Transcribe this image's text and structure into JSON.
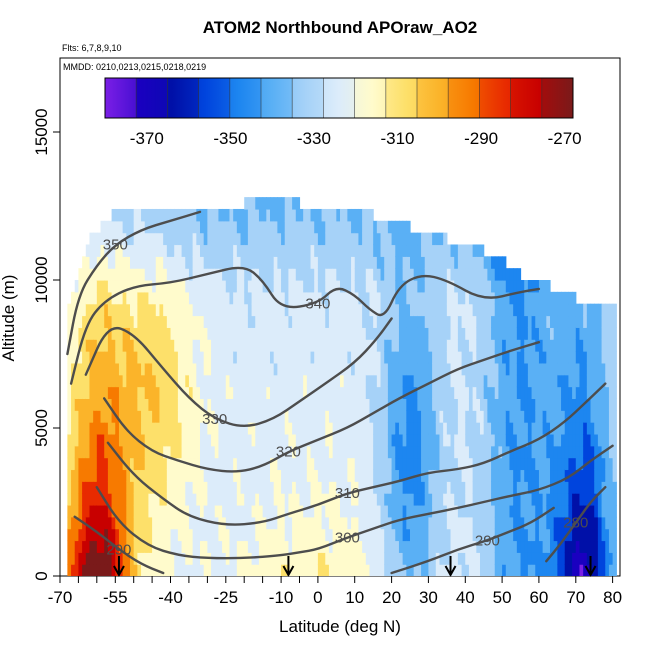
{
  "chart_data": {
    "type": "heatmap",
    "title": "ATOM2 Northbound APOraw_AO2",
    "subtitle_flights": "Flts: 6,7,8,9,10",
    "subtitle_dates": "MMDD: 0210,0213,0215,0218,0219",
    "xlabel": "Latitude (deg N)",
    "ylabel": "Altitude (m)",
    "xlim": [
      -70,
      82
    ],
    "ylim": [
      0,
      17500
    ],
    "x_ticks": [
      -70,
      -55,
      -40,
      -25,
      -10,
      0,
      10,
      20,
      30,
      40,
      50,
      60,
      70,
      80
    ],
    "x_tick_labels": [
      "-70",
      "-55",
      "-40",
      "-25",
      "-10",
      "0",
      "10",
      "20",
      "30",
      "40",
      "50",
      "60",
      "70",
      "80"
    ],
    "x_minor_ticks": [
      -65,
      -60,
      -50,
      -45,
      -35,
      -30,
      -20,
      -15,
      -5
    ],
    "y_ticks": [
      0,
      5000,
      10000,
      15000
    ],
    "y_tick_labels": [
      "0",
      "5000",
      "10000",
      "15000"
    ],
    "colorbar": {
      "range": [
        -380,
        -268
      ],
      "ticks": [
        -370,
        -350,
        -330,
        -310,
        -290,
        -270
      ],
      "tick_labels": [
        "-370",
        "-350",
        "-330",
        "-310",
        "-290",
        "-270"
      ],
      "colors": [
        "#7b1fe6",
        "#1a00c0",
        "#0010a8",
        "#0044dd",
        "#1d86f0",
        "#5ab0f5",
        "#a6d2f8",
        "#dcecfa",
        "#fffbcc",
        "#fde06a",
        "#fbb42a",
        "#f77a00",
        "#e82a00",
        "#c80000",
        "#7a1a1a"
      ]
    },
    "heatmap_profile": {
      "latitudes": [
        -67,
        -63,
        -59,
        -55,
        -50,
        -45,
        -40,
        -35,
        -30,
        -25,
        -20,
        -15,
        -10,
        -5,
        0,
        5,
        10,
        15,
        20,
        25,
        30,
        35,
        40,
        45,
        50,
        55,
        60,
        65,
        70,
        75,
        80
      ],
      "tops_m": [
        9000,
        11000,
        11600,
        12200,
        12400,
        12400,
        12400,
        12400,
        12400,
        12400,
        12400,
        12600,
        12800,
        12400,
        12000,
        12400,
        12200,
        12000,
        11800,
        11600,
        11400,
        11200,
        11000,
        10800,
        10500,
        10000,
        9800,
        9500,
        9200,
        9000,
        8900
      ]
    },
    "contours": [
      {
        "label": "350",
        "points": [
          [
            -68,
            7500
          ],
          [
            -65,
            9500
          ],
          [
            -60,
            10500
          ],
          [
            -55,
            11200
          ],
          [
            -48,
            11700
          ],
          [
            -40,
            12000
          ],
          [
            -32,
            12300
          ]
        ]
      },
      {
        "label": "340",
        "points": [
          [
            -67,
            6500
          ],
          [
            -63,
            8500
          ],
          [
            -58,
            9300
          ],
          [
            -50,
            9800
          ],
          [
            -40,
            9900
          ],
          [
            -30,
            10200
          ],
          [
            -20,
            10500
          ],
          [
            -15,
            10000
          ],
          [
            -10,
            9000
          ],
          [
            0,
            9200
          ],
          [
            5,
            9800
          ],
          [
            10,
            9500
          ],
          [
            14,
            9000
          ],
          [
            18,
            8700
          ],
          [
            22,
            9800
          ],
          [
            28,
            10200
          ],
          [
            35,
            10000
          ],
          [
            45,
            9300
          ],
          [
            55,
            9600
          ],
          [
            60,
            9700
          ]
        ]
      },
      {
        "label": "330",
        "points": [
          [
            -63,
            6800
          ],
          [
            -57,
            8500
          ],
          [
            -50,
            8200
          ],
          [
            -42,
            7000
          ],
          [
            -35,
            6000
          ],
          [
            -28,
            5300
          ],
          [
            -20,
            5000
          ],
          [
            -12,
            5300
          ],
          [
            -5,
            5900
          ],
          [
            2,
            6500
          ],
          [
            10,
            7200
          ],
          [
            16,
            8000
          ],
          [
            20,
            8700
          ]
        ]
      },
      {
        "label": "320",
        "points": [
          [
            -58,
            6000
          ],
          [
            -52,
            4900
          ],
          [
            -45,
            4200
          ],
          [
            -38,
            3900
          ],
          [
            -30,
            3600
          ],
          [
            -22,
            3500
          ],
          [
            -15,
            3700
          ],
          [
            -8,
            4200
          ],
          [
            0,
            4600
          ],
          [
            8,
            5000
          ],
          [
            15,
            5500
          ],
          [
            22,
            6000
          ],
          [
            30,
            6500
          ],
          [
            38,
            7000
          ],
          [
            45,
            7300
          ],
          [
            52,
            7600
          ],
          [
            60,
            7900
          ]
        ]
      },
      {
        "label": "310",
        "points": [
          [
            -57,
            4500
          ],
          [
            -50,
            3400
          ],
          [
            -42,
            2600
          ],
          [
            -35,
            2000
          ],
          [
            -25,
            1700
          ],
          [
            -15,
            1800
          ],
          [
            -8,
            2100
          ],
          [
            0,
            2400
          ],
          [
            8,
            2800
          ],
          [
            15,
            3000
          ],
          [
            22,
            3200
          ],
          [
            30,
            3500
          ],
          [
            38,
            3600
          ],
          [
            45,
            3800
          ],
          [
            52,
            4200
          ],
          [
            60,
            4600
          ],
          [
            67,
            5200
          ],
          [
            73,
            5900
          ],
          [
            78,
            6500
          ]
        ]
      },
      {
        "label": "300",
        "points": [
          [
            -60,
            3000
          ],
          [
            -54,
            1800
          ],
          [
            -46,
            1000
          ],
          [
            -38,
            700
          ],
          [
            -30,
            600
          ],
          [
            -20,
            600
          ],
          [
            -10,
            700
          ],
          [
            -5,
            800
          ],
          [
            0,
            900
          ],
          [
            8,
            1300
          ],
          [
            15,
            1600
          ],
          [
            22,
            1900
          ],
          [
            30,
            2100
          ],
          [
            38,
            2300
          ],
          [
            45,
            2500
          ],
          [
            52,
            2700
          ],
          [
            60,
            2900
          ],
          [
            68,
            3300
          ],
          [
            74,
            3900
          ],
          [
            80,
            4400
          ]
        ]
      },
      {
        "label": "290",
        "points": [
          [
            -66,
            2000
          ],
          [
            -60,
            1500
          ],
          [
            -54,
            900
          ],
          [
            -48,
            400
          ],
          [
            -42,
            100
          ]
        ]
      },
      {
        "label": "290",
        "points": [
          [
            20,
            100
          ],
          [
            30,
            500
          ],
          [
            38,
            900
          ],
          [
            46,
            1200
          ],
          [
            52,
            1500
          ],
          [
            58,
            1800
          ],
          [
            64,
            2300
          ]
        ]
      },
      {
        "label": "280",
        "points": [
          [
            62,
            500
          ],
          [
            66,
            1100
          ],
          [
            70,
            1800
          ],
          [
            74,
            2500
          ],
          [
            78,
            3000
          ]
        ]
      }
    ],
    "arrows_latitude": [
      -54,
      -8,
      36,
      74
    ],
    "contour_labels_text": [
      "350",
      "340",
      "330",
      "320",
      "310",
      "300",
      "290",
      "290",
      "280"
    ]
  }
}
